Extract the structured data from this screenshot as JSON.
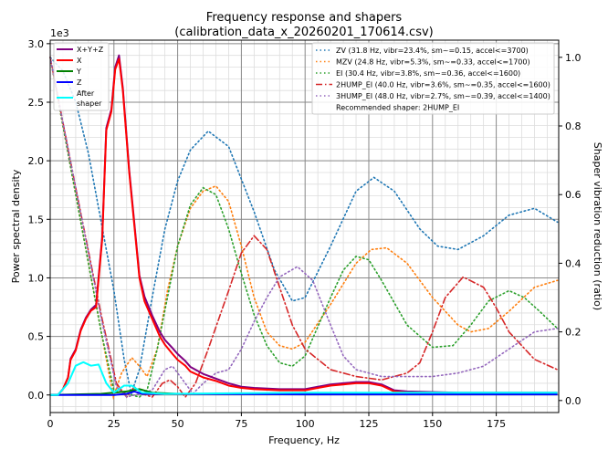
{
  "chart_data": {
    "type": "line",
    "title": "Frequency response and shapers",
    "subtitle": "(calibration_data_x_20260201_170614.csv)",
    "xlabel": "Frequency, Hz",
    "ylabel": "Power spectral density",
    "ylabel_right": "Shaper vibration reduction (ratio)",
    "y_multiplier": "1e3",
    "xlim": [
      0,
      199.5
    ],
    "ylim": [
      -0.15,
      3.03
    ],
    "ylim_right": [
      -0.035,
      1.05
    ],
    "xticks": [
      "0",
      "25",
      "50",
      "75",
      "100",
      "125",
      "150",
      "175"
    ],
    "xtick_values": [
      0,
      25,
      50,
      75,
      100,
      125,
      150,
      175
    ],
    "yticks": [
      "0.0",
      "0.5",
      "1.0",
      "1.5",
      "2.0",
      "2.5",
      "3.0"
    ],
    "ytick_values": [
      0,
      0.5,
      1,
      1.5,
      2,
      2.5,
      3
    ],
    "yticks_right": [
      "0.0",
      "0.2",
      "0.4",
      "0.6",
      "0.8",
      "1.0"
    ],
    "ytick_right_values": [
      0,
      0.2,
      0.4,
      0.6,
      0.8,
      1.0
    ],
    "grid": true,
    "psd_series": [
      {
        "name": "X+Y+Z",
        "color": "#800080",
        "width": 2,
        "x": [
          0,
          3,
          5,
          7,
          8,
          10,
          12,
          14,
          16,
          18,
          20.4,
          22,
          24,
          25.5,
          27,
          28.5,
          31,
          33,
          35,
          37,
          40,
          43,
          45,
          48,
          50,
          53,
          55,
          60,
          65,
          70,
          75,
          80,
          90,
          100,
          105,
          110,
          115,
          120,
          125,
          130,
          135,
          140,
          160,
          199
        ],
        "y": [
          0,
          0,
          0.05,
          0.15,
          0.31,
          0.39,
          0.56,
          0.66,
          0.73,
          0.77,
          1.35,
          2.28,
          2.44,
          2.8,
          2.9,
          2.62,
          1.92,
          1.47,
          1.02,
          0.84,
          0.68,
          0.54,
          0.47,
          0.4,
          0.35,
          0.29,
          0.24,
          0.18,
          0.14,
          0.1,
          0.07,
          0.06,
          0.05,
          0.05,
          0.07,
          0.09,
          0.1,
          0.11,
          0.11,
          0.09,
          0.04,
          0.03,
          0.02,
          0.02
        ]
      },
      {
        "name": "X",
        "color": "#ff0000",
        "width": 2,
        "x": [
          0,
          3,
          5,
          7,
          8,
          10,
          12,
          14,
          16,
          18,
          20.4,
          22,
          24,
          25.5,
          27,
          28.5,
          31,
          33,
          35,
          37,
          40,
          43,
          45,
          48,
          50,
          53,
          55,
          60,
          65,
          70,
          75,
          80,
          90,
          100,
          105,
          110,
          115,
          120,
          125,
          130,
          135,
          140,
          160,
          199
        ],
        "y": [
          0,
          0,
          0.05,
          0.15,
          0.3,
          0.38,
          0.55,
          0.65,
          0.72,
          0.75,
          1.33,
          2.26,
          2.42,
          2.78,
          2.87,
          2.6,
          1.9,
          1.45,
          1.0,
          0.8,
          0.65,
          0.5,
          0.43,
          0.35,
          0.3,
          0.25,
          0.2,
          0.15,
          0.12,
          0.08,
          0.06,
          0.05,
          0.04,
          0.04,
          0.06,
          0.08,
          0.09,
          0.1,
          0.1,
          0.08,
          0.03,
          0.02,
          0.015,
          0.015
        ]
      },
      {
        "name": "Y",
        "color": "#008000",
        "width": 2,
        "x": [
          0,
          20,
          30,
          35,
          40,
          50,
          100,
          150,
          199
        ],
        "y": [
          0,
          0.01,
          0.03,
          0.05,
          0.02,
          0.01,
          0.01,
          0.01,
          0.01
        ]
      },
      {
        "name": "Z",
        "color": "#0000ff",
        "width": 2,
        "x": [
          0,
          25,
          30,
          33,
          36,
          50,
          100,
          199
        ],
        "y": [
          0,
          0,
          0.01,
          0.03,
          0.01,
          0.01,
          0.005,
          0.005
        ]
      },
      {
        "name": "After\nshaper",
        "color": "#00ffff",
        "width": 2,
        "x": [
          0,
          3,
          7,
          10,
          13,
          16,
          19,
          22,
          25,
          29,
          32,
          36,
          45,
          100,
          150,
          199
        ],
        "y": [
          0,
          0,
          0.1,
          0.25,
          0.28,
          0.25,
          0.26,
          0.1,
          0.02,
          0.08,
          0.08,
          0.02,
          0.01,
          0.02,
          0.02,
          0.02
        ]
      }
    ],
    "shaper_series": [
      {
        "name": "ZV (31.8 Hz, vibr=23.4%, sm~=0.15, accel<=3700)",
        "color": "#1f77b4",
        "dash": "dotted",
        "x": [
          0,
          5,
          10,
          15,
          20,
          25,
          29,
          31.8,
          35,
          40,
          45,
          50,
          55,
          62,
          70,
          80,
          88,
          95,
          100,
          110,
          120,
          127,
          135,
          145,
          152,
          160,
          170,
          180,
          190,
          199
        ],
        "y": [
          1.0,
          0.96,
          0.87,
          0.72,
          0.52,
          0.32,
          0.12,
          0.02,
          0.09,
          0.3,
          0.5,
          0.64,
          0.73,
          0.785,
          0.74,
          0.55,
          0.38,
          0.29,
          0.3,
          0.45,
          0.61,
          0.65,
          0.61,
          0.5,
          0.45,
          0.44,
          0.48,
          0.54,
          0.56,
          0.52
        ]
      },
      {
        "name": "MZV (24.8 Hz, vibr=5.3%, sm~=0.33, accel<=1700)",
        "color": "#ff7f0e",
        "dash": "dotted",
        "x": [
          0,
          5,
          10,
          15,
          20,
          24.8,
          28,
          32,
          35,
          38,
          42,
          46,
          50,
          55,
          60,
          65,
          70,
          75,
          80,
          85,
          90,
          95,
          100,
          110,
          120,
          126,
          132,
          140,
          150,
          160,
          165,
          172,
          180,
          190,
          199
        ],
        "y": [
          1.0,
          0.8,
          0.6,
          0.4,
          0.2,
          0.01,
          0.08,
          0.125,
          0.1,
          0.07,
          0.15,
          0.32,
          0.45,
          0.56,
          0.61,
          0.625,
          0.58,
          0.45,
          0.3,
          0.2,
          0.16,
          0.15,
          0.17,
          0.28,
          0.4,
          0.44,
          0.445,
          0.4,
          0.3,
          0.22,
          0.2,
          0.21,
          0.26,
          0.33,
          0.35
        ]
      },
      {
        "name": "EI (30.4 Hz, vibr=3.8%, sm~=0.36, accel<=1600)",
        "color": "#2ca02c",
        "dash": "dotted",
        "x": [
          0,
          10,
          20,
          25,
          30,
          35,
          38,
          42,
          46,
          50,
          55,
          60,
          65,
          70,
          75,
          80,
          85,
          90,
          95,
          100,
          110,
          115,
          120,
          125,
          130,
          140,
          150,
          158,
          165,
          172,
          180,
          186,
          192,
          199
        ],
        "y": [
          1.0,
          0.6,
          0.2,
          0.03,
          0.02,
          0.01,
          0.03,
          0.15,
          0.3,
          0.45,
          0.57,
          0.62,
          0.6,
          0.5,
          0.37,
          0.25,
          0.16,
          0.11,
          0.1,
          0.13,
          0.3,
          0.38,
          0.42,
          0.41,
          0.35,
          0.22,
          0.155,
          0.16,
          0.22,
          0.29,
          0.32,
          0.3,
          0.26,
          0.21
        ]
      },
      {
        "name": "2HUMP_EI (40.0 Hz, vibr=3.6%, sm~=0.35, accel<=1600)",
        "color": "#d62728",
        "dash": "dashdot",
        "x": [
          0,
          10,
          20,
          26,
          30,
          33,
          36,
          40,
          44,
          47,
          50,
          53,
          57,
          62,
          70,
          75,
          80,
          85,
          90,
          95,
          100,
          110,
          120,
          130,
          140,
          145,
          150,
          155,
          162,
          170,
          175,
          180,
          190,
          199
        ],
        "y": [
          1.0,
          0.62,
          0.25,
          0.05,
          0.01,
          0.04,
          0.02,
          0.01,
          0.05,
          0.06,
          0.04,
          0.01,
          0.05,
          0.15,
          0.32,
          0.43,
          0.48,
          0.44,
          0.33,
          0.22,
          0.15,
          0.09,
          0.07,
          0.06,
          0.08,
          0.11,
          0.2,
          0.3,
          0.36,
          0.33,
          0.27,
          0.2,
          0.12,
          0.09
        ]
      },
      {
        "name": "3HUMP_EI (48.0 Hz, vibr=2.7%, sm~=0.39, accel<=1400)",
        "color": "#9467bd",
        "dash": "dotted",
        "x": [
          0,
          10,
          20,
          26,
          30,
          35,
          40,
          45,
          48,
          52,
          56,
          60,
          65,
          70,
          75,
          80,
          85,
          90,
          97,
          103,
          110,
          115,
          120,
          130,
          140,
          150,
          160,
          170,
          180,
          190,
          199
        ],
        "y": [
          1.0,
          0.62,
          0.24,
          0.04,
          0.01,
          0.02,
          0.03,
          0.09,
          0.1,
          0.06,
          0.02,
          0.05,
          0.08,
          0.09,
          0.15,
          0.23,
          0.3,
          0.36,
          0.39,
          0.35,
          0.22,
          0.13,
          0.09,
          0.07,
          0.07,
          0.07,
          0.08,
          0.1,
          0.15,
          0.2,
          0.21
        ]
      }
    ],
    "recommended": "Recommended shaper: 2HUMP_EI",
    "legend_left_placement": "top-left",
    "legend_right_placement": "top-right"
  }
}
